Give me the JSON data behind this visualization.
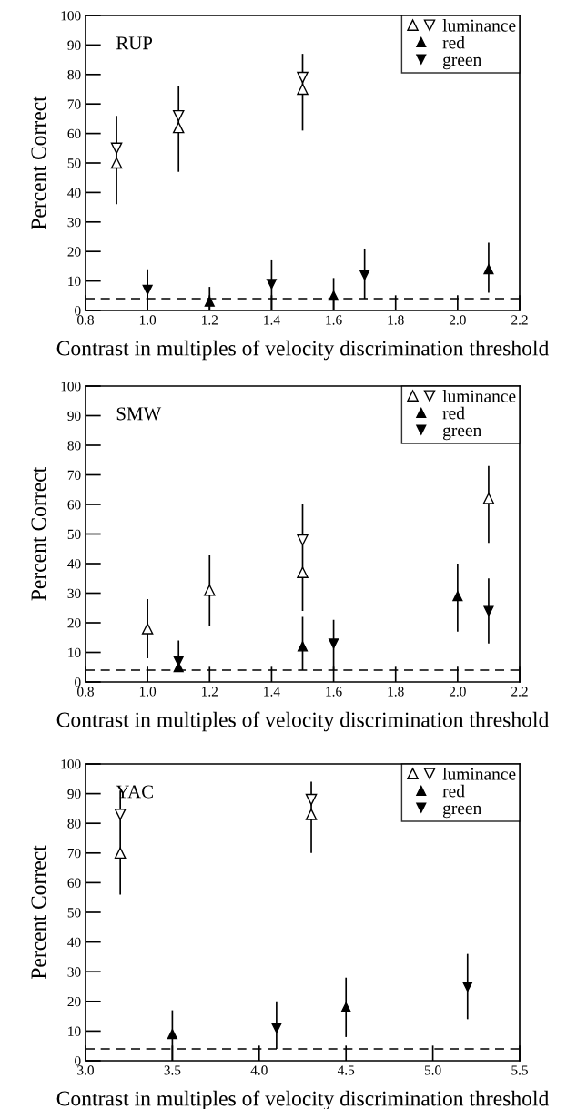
{
  "chart_data": [
    {
      "type": "scatter",
      "annotations": [
        "RUP"
      ],
      "xlabel": "Contrast in multiples of velocity discrimination threshold",
      "ylabel": "Percent Correct",
      "xlim": [
        0.8,
        2.2
      ],
      "xticks": [
        {
          "value": 0.8,
          "label": "0.8"
        },
        {
          "value": 1.0,
          "label": "1.0"
        },
        {
          "value": 1.2,
          "label": "1.2"
        },
        {
          "value": 1.4,
          "label": "1.4"
        },
        {
          "value": 1.6,
          "label": "1.6"
        },
        {
          "value": 1.8,
          "label": "1.8"
        },
        {
          "value": 2.0,
          "label": "2.0"
        },
        {
          "value": 2.2,
          "label": "2.2"
        }
      ],
      "ylim": [
        0,
        100
      ],
      "yticks": [
        0,
        10,
        20,
        30,
        40,
        50,
        60,
        70,
        80,
        90,
        100
      ],
      "legend": "top right",
      "ref_lines": [
        {
          "axis": "y",
          "value": 4,
          "line_style": "dashed"
        }
      ],
      "series": [
        {
          "name": "luminance",
          "marker": "triangle",
          "color": "#000000",
          "x": [
            0.9,
            1.1,
            1.5
          ],
          "values": [
            50,
            62,
            75
          ],
          "errors": [
            [
              36,
              66
            ],
            [
              47,
              76
            ],
            [
              61,
              87
            ]
          ]
        },
        {
          "marker": "triangle",
          "color": "#000000",
          "x": [
            0.9,
            1.1,
            1.5
          ],
          "values": [
            55,
            66,
            79
          ]
        },
        {
          "name": "red",
          "marker": "triangle",
          "color": "#000000",
          "x": [
            1.2,
            1.6,
            2.1
          ],
          "values": [
            3,
            5,
            14
          ],
          "errors": [
            [
              0,
              8
            ],
            [
              0,
              11
            ],
            [
              6,
              23
            ]
          ]
        },
        {
          "name": "green",
          "marker": "triangle",
          "color": "#000000",
          "x": [
            1.0,
            1.4,
            1.7
          ],
          "values": [
            7,
            9,
            12
          ],
          "errors": [
            [
              0,
              14
            ],
            [
              0,
              17
            ],
            [
              4,
              21
            ]
          ]
        }
      ]
    },
    {
      "type": "scatter",
      "annotations": [
        "SMW"
      ],
      "xlabel": "Contrast in multiples of velocity discrimination threshold",
      "ylabel": "Percent Correct",
      "xlim": [
        0.8,
        2.2
      ],
      "xticks": [
        {
          "value": 0.8,
          "label": "0.8"
        },
        {
          "value": 1.0,
          "label": "1.0"
        },
        {
          "value": 1.2,
          "label": "1.2"
        },
        {
          "value": 1.4,
          "label": "1.4"
        },
        {
          "value": 1.6,
          "label": "1.6"
        },
        {
          "value": 1.8,
          "label": "1.8"
        },
        {
          "value": 2.0,
          "label": "2.0"
        },
        {
          "value": 2.2,
          "label": "2.2"
        }
      ],
      "ylim": [
        0,
        100
      ],
      "yticks": [
        0,
        10,
        20,
        30,
        40,
        50,
        60,
        70,
        80,
        90,
        100
      ],
      "legend": "top right",
      "ref_lines": [
        {
          "axis": "y",
          "value": 4,
          "line_style": "dashed"
        }
      ],
      "series": [
        {
          "name": "luminance",
          "marker": "triangle",
          "color": "#000000",
          "x": [
            1.0,
            1.2,
            1.5,
            2.1
          ],
          "values": [
            18,
            31,
            37,
            62
          ],
          "errors": [
            [
              8,
              28
            ],
            [
              19,
              43
            ],
            [
              24,
              60
            ],
            [
              47,
              73
            ]
          ]
        },
        {
          "marker": "triangle",
          "color": "#000000",
          "x": [
            1.5
          ],
          "values": [
            48
          ]
        },
        {
          "name": "red",
          "marker": "triangle",
          "color": "#000000",
          "x": [
            1.1,
            1.5,
            2.0
          ],
          "values": [
            5,
            12,
            29
          ],
          "errors": [
            null,
            [
              4,
              22
            ],
            [
              17,
              40
            ]
          ]
        },
        {
          "name": "green",
          "marker": "triangle",
          "color": "#000000",
          "x": [
            1.1,
            1.6,
            2.1
          ],
          "values": [
            7,
            13,
            24
          ],
          "errors": [
            [
              4,
              14
            ],
            [
              4,
              21
            ],
            [
              13,
              35
            ]
          ]
        }
      ]
    },
    {
      "type": "scatter",
      "annotations": [
        "YAC"
      ],
      "xlabel": "Contrast in multiples of velocity discrimination threshold",
      "ylabel": "Percent Correct",
      "xlim": [
        3.0,
        5.5
      ],
      "xticks": [
        {
          "value": 3.0,
          "label": "3.0"
        },
        {
          "value": 3.5,
          "label": "3.5"
        },
        {
          "value": 4.0,
          "label": "4.0"
        },
        {
          "value": 4.5,
          "label": "4.5"
        },
        {
          "value": 5.0,
          "label": "5.0"
        },
        {
          "value": 5.5,
          "label": "5.5"
        }
      ],
      "ylim": [
        0,
        100
      ],
      "yticks": [
        0,
        10,
        20,
        30,
        40,
        50,
        60,
        70,
        80,
        90,
        100
      ],
      "legend": "top right",
      "ref_lines": [
        {
          "axis": "y",
          "value": 4,
          "line_style": "dashed"
        }
      ],
      "series": [
        {
          "name": "luminance",
          "marker": "triangle",
          "color": "#000000",
          "x": [
            3.2,
            4.3
          ],
          "values": [
            70,
            83
          ],
          "errors": [
            [
              56,
              91
            ],
            [
              70,
              94
            ]
          ]
        },
        {
          "marker": "triangle",
          "color": "#000000",
          "x": [
            3.2,
            4.3
          ],
          "values": [
            83,
            88
          ]
        },
        {
          "name": "red",
          "marker": "triangle",
          "color": "#000000",
          "x": [
            3.5,
            4.5
          ],
          "values": [
            9,
            18
          ],
          "errors": [
            [
              0,
              17
            ],
            [
              8,
              28
            ]
          ]
        },
        {
          "name": "green",
          "marker": "triangle",
          "color": "#000000",
          "x": [
            4.1,
            5.2
          ],
          "values": [
            11,
            25
          ],
          "errors": [
            [
              4,
              20
            ],
            [
              14,
              36
            ]
          ]
        }
      ]
    }
  ]
}
